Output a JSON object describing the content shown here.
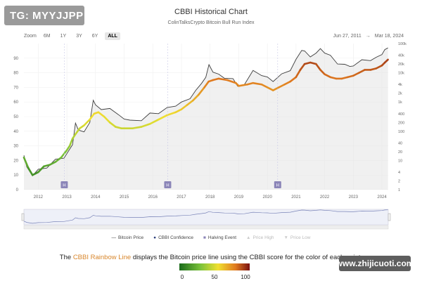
{
  "badge": "TG: MYYJJPP",
  "watermark": "www.zhijicuoti.com",
  "zoom": {
    "label": "Zoom",
    "buttons": [
      "6M",
      "1Y",
      "3Y",
      "6Y",
      "ALL"
    ],
    "active": "ALL"
  },
  "range": {
    "from": "Jun 27, 2011",
    "arrow": "→",
    "to": "Mar 18, 2024"
  },
  "legend": [
    {
      "label": "Bitcoin Price",
      "icon": "line-icon",
      "dim": false
    },
    {
      "label": "CBBI Confidence",
      "icon": "dot-icon",
      "dim": false
    },
    {
      "label": "Halving Event",
      "icon": "square-icon",
      "dim": false
    },
    {
      "label": "Price High",
      "icon": "triangle-up-icon",
      "dim": true
    },
    {
      "label": "Price Low",
      "icon": "triangle-down-icon",
      "dim": true
    }
  ],
  "caption": {
    "pre": "The ",
    "accent": "CBBI Rainbow Line",
    "post": " displays the Bitcoin price line using the CBBI score for the color of each point."
  },
  "color_scale": {
    "labels": [
      "0",
      "50",
      "100"
    ],
    "colors": [
      "#1a6b1a",
      "#7ac23a",
      "#f0e030",
      "#e07a20",
      "#7a1010"
    ]
  },
  "halving_marker": "H",
  "chart_data": {
    "type": "line",
    "title": "CBBI Historical Chart",
    "subtitle": "ColinTalksCrypto Bitcoin Bull Run Index",
    "x_ticks": [
      "2012",
      "2013",
      "2014",
      "2015",
      "2016",
      "2017",
      "2018",
      "2019",
      "2020",
      "2021",
      "2022",
      "2023",
      "2024"
    ],
    "x_range": [
      2011.5,
      2024.22
    ],
    "y_left": {
      "label": "",
      "ticks": [
        0,
        10,
        20,
        30,
        40,
        50,
        60,
        70,
        80,
        90
      ],
      "range": [
        0,
        100
      ]
    },
    "y_right": {
      "label": "",
      "scale": "log",
      "ticks": [
        "1",
        "2",
        "4",
        "10",
        "20",
        "40",
        "100",
        "200",
        "400",
        "1k",
        "2k",
        "4k",
        "10k",
        "20k",
        "40k",
        "100k"
      ],
      "range": [
        1,
        100000
      ]
    },
    "halvings": [
      2012.91,
      2016.52,
      2020.36
    ],
    "series": [
      {
        "name": "CBBI Confidence",
        "x": [
          2011.5,
          2011.65,
          2011.8,
          2012.0,
          2012.2,
          2012.4,
          2012.6,
          2012.8,
          2013.0,
          2013.1,
          2013.2,
          2013.3,
          2013.45,
          2013.6,
          2013.8,
          2013.95,
          2014.1,
          2014.3,
          2014.5,
          2014.7,
          2014.9,
          2015.0,
          2015.3,
          2015.6,
          2015.9,
          2016.2,
          2016.5,
          2016.8,
          2017.0,
          2017.2,
          2017.4,
          2017.6,
          2017.8,
          2017.95,
          2018.1,
          2018.3,
          2018.6,
          2018.9,
          2019.0,
          2019.3,
          2019.5,
          2019.8,
          2020.0,
          2020.2,
          2020.4,
          2020.6,
          2020.8,
          2021.0,
          2021.15,
          2021.3,
          2021.5,
          2021.7,
          2021.85,
          2022.0,
          2022.2,
          2022.4,
          2022.6,
          2022.8,
          2023.0,
          2023.2,
          2023.4,
          2023.6,
          2023.8,
          2024.0,
          2024.1,
          2024.21
        ],
        "y": [
          22,
          15,
          10,
          12,
          16,
          17,
          19,
          22,
          27,
          30,
          35,
          38,
          42,
          44,
          48,
          52,
          53,
          50,
          46,
          43,
          42,
          42,
          42,
          43,
          45,
          48,
          51,
          53,
          55,
          58,
          61,
          65,
          70,
          74,
          75,
          76,
          75,
          73,
          71,
          72,
          73,
          72,
          70,
          68,
          70,
          72,
          74,
          77,
          82,
          86,
          87,
          86,
          82,
          79,
          77,
          76,
          76,
          77,
          78,
          80,
          82,
          82,
          83,
          85,
          87,
          89
        ]
      },
      {
        "name": "Bitcoin Price",
        "x": [
          2011.5,
          2011.6,
          2011.8,
          2012.0,
          2012.3,
          2012.6,
          2012.9,
          2013.2,
          2013.3,
          2013.4,
          2013.6,
          2013.8,
          2013.92,
          2014.0,
          2014.2,
          2014.5,
          2014.8,
          2015.0,
          2015.2,
          2015.6,
          2015.9,
          2016.2,
          2016.5,
          2016.8,
          2017.0,
          2017.3,
          2017.5,
          2017.7,
          2017.85,
          2017.96,
          2018.1,
          2018.3,
          2018.5,
          2018.8,
          2018.96,
          2019.2,
          2019.5,
          2019.8,
          2020.0,
          2020.2,
          2020.5,
          2020.8,
          2021.0,
          2021.2,
          2021.3,
          2021.5,
          2021.7,
          2021.85,
          2022.0,
          2022.2,
          2022.45,
          2022.7,
          2022.88,
          2023.0,
          2023.3,
          2023.6,
          2023.8,
          2024.0,
          2024.1,
          2024.21
        ],
        "y": [
          15,
          6,
          3,
          5,
          5.5,
          11,
          12,
          35,
          190,
          110,
          95,
          200,
          1150,
          800,
          550,
          600,
          370,
          260,
          240,
          230,
          420,
          400,
          650,
          720,
          1000,
          1300,
          2500,
          4300,
          7000,
          19000,
          10500,
          9000,
          6500,
          6300,
          3500,
          4000,
          12000,
          8000,
          7200,
          5000,
          9200,
          11800,
          29000,
          58000,
          56000,
          35000,
          47000,
          67000,
          47000,
          40000,
          20000,
          19500,
          16500,
          17000,
          28000,
          26000,
          34000,
          42000,
          62000,
          71000
        ]
      }
    ],
    "navigator": true
  }
}
